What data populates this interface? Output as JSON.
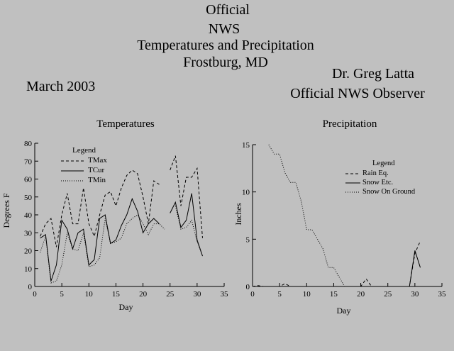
{
  "header": {
    "line1": "Official",
    "line2": "NWS",
    "line3": "Temperatures and Precipitation",
    "line4": "Frostburg, MD",
    "month": "March 2003",
    "observer_name": "Dr. Greg Latta",
    "observer_title": "Official NWS Observer"
  },
  "chart_data": [
    {
      "type": "line",
      "title": "Temperatures",
      "xlabel": "Day",
      "ylabel": "Degrees F",
      "xlim": [
        0,
        35
      ],
      "ylim": [
        0,
        80
      ],
      "xticks": [
        0,
        5,
        10,
        15,
        20,
        25,
        30,
        35
      ],
      "yticks": [
        0,
        10,
        20,
        30,
        40,
        50,
        60,
        70,
        80
      ],
      "grid": false,
      "legend": {
        "title": "Legend",
        "placement": "top-left"
      },
      "series": [
        {
          "name": "TMax",
          "style": "dashed",
          "points": [
            [
              1,
              28
            ],
            [
              2,
              35
            ],
            [
              3,
              38
            ],
            [
              4,
              22
            ],
            [
              5,
              40
            ],
            [
              6,
              52
            ],
            [
              7,
              35
            ],
            [
              8,
              35
            ],
            [
              9,
              55
            ],
            [
              10,
              35
            ],
            [
              11,
              28
            ],
            [
              12,
              40
            ],
            [
              13,
              51
            ],
            [
              14,
              53
            ],
            [
              15,
              45
            ],
            [
              16,
              55
            ],
            [
              17,
              62
            ],
            [
              18,
              65
            ],
            [
              19,
              63
            ],
            [
              20,
              50
            ],
            [
              21,
              35
            ],
            [
              22,
              59
            ],
            [
              23,
              57
            ],
            [
              null,
              null
            ],
            [
              25,
              65
            ],
            [
              26,
              73
            ],
            [
              27,
              45
            ],
            [
              28,
              61
            ],
            [
              29,
              61
            ],
            [
              30,
              66
            ],
            [
              31,
              27
            ]
          ]
        },
        {
          "name": "TCur",
          "style": "solid",
          "points": [
            [
              1,
              27
            ],
            [
              2,
              29
            ],
            [
              3,
              3
            ],
            [
              4,
              12
            ],
            [
              5,
              37
            ],
            [
              6,
              32
            ],
            [
              7,
              21
            ],
            [
              8,
              30
            ],
            [
              9,
              32
            ],
            [
              10,
              12
            ],
            [
              11,
              15
            ],
            [
              12,
              38
            ],
            [
              13,
              40
            ],
            [
              14,
              24
            ],
            [
              15,
              26
            ],
            [
              16,
              34
            ],
            [
              17,
              40
            ],
            [
              18,
              49
            ],
            [
              19,
              42
            ],
            [
              20,
              30
            ],
            [
              21,
              35
            ],
            [
              22,
              38
            ],
            [
              23,
              35
            ],
            [
              null,
              null
            ],
            [
              25,
              41
            ],
            [
              26,
              47
            ],
            [
              27,
              33
            ],
            [
              28,
              37
            ],
            [
              29,
              52
            ],
            [
              30,
              26
            ],
            [
              31,
              17
            ]
          ]
        },
        {
          "name": "TMin",
          "style": "dotted",
          "points": [
            [
              1,
              19
            ],
            [
              2,
              28
            ],
            [
              3,
              2
            ],
            [
              4,
              3
            ],
            [
              5,
              12
            ],
            [
              6,
              30
            ],
            [
              7,
              21
            ],
            [
              8,
              20
            ],
            [
              9,
              30
            ],
            [
              10,
              11
            ],
            [
              11,
              12
            ],
            [
              12,
              16
            ],
            [
              13,
              38
            ],
            [
              14,
              24
            ],
            [
              15,
              25
            ],
            [
              16,
              27
            ],
            [
              17,
              35
            ],
            [
              18,
              38
            ],
            [
              19,
              40
            ],
            [
              20,
              35
            ],
            [
              21,
              29
            ],
            [
              22,
              35
            ],
            [
              23,
              35
            ],
            [
              24,
              32
            ],
            [
              null,
              null
            ],
            [
              26,
              45
            ],
            [
              27,
              32
            ],
            [
              28,
              33
            ],
            [
              29,
              37
            ],
            [
              30,
              25
            ],
            [
              31,
              17
            ]
          ]
        }
      ]
    },
    {
      "type": "line",
      "title": "Precipitation",
      "xlabel": "Day",
      "ylabel": "Inches",
      "xlim": [
        0,
        35
      ],
      "ylim": [
        0,
        15
      ],
      "xticks": [
        0,
        5,
        10,
        15,
        20,
        25,
        30,
        35
      ],
      "yticks": [
        0,
        5,
        10,
        15
      ],
      "grid": false,
      "legend": {
        "title": "Legend",
        "placement": "top-right"
      },
      "series": [
        {
          "name": "Rain Eq.",
          "style": "dashed",
          "points": [
            [
              0,
              0
            ],
            [
              1,
              0.1
            ],
            [
              2,
              0
            ],
            [
              5,
              0
            ],
            [
              6,
              0.3
            ],
            [
              7,
              0
            ],
            [
              20,
              0
            ],
            [
              21,
              0.8
            ],
            [
              22,
              0
            ],
            [
              29,
              0
            ],
            [
              30,
              3.5
            ],
            [
              31,
              4.8
            ]
          ]
        },
        {
          "name": "Snow Etc.",
          "style": "solid",
          "points": [
            [
              29,
              0
            ],
            [
              30,
              3.8
            ],
            [
              31,
              2
            ]
          ]
        },
        {
          "name": "Snow On Ground",
          "style": "dotted",
          "points": [
            [
              3,
              15
            ],
            [
              4,
              14
            ],
            [
              5,
              14
            ],
            [
              6,
              12
            ],
            [
              7,
              11
            ],
            [
              8,
              11
            ],
            [
              9,
              9
            ],
            [
              10,
              6
            ],
            [
              11,
              6
            ],
            [
              12,
              5
            ],
            [
              13,
              4
            ],
            [
              14,
              2
            ],
            [
              15,
              2
            ],
            [
              16,
              1
            ],
            [
              17,
              0
            ]
          ]
        }
      ]
    }
  ]
}
